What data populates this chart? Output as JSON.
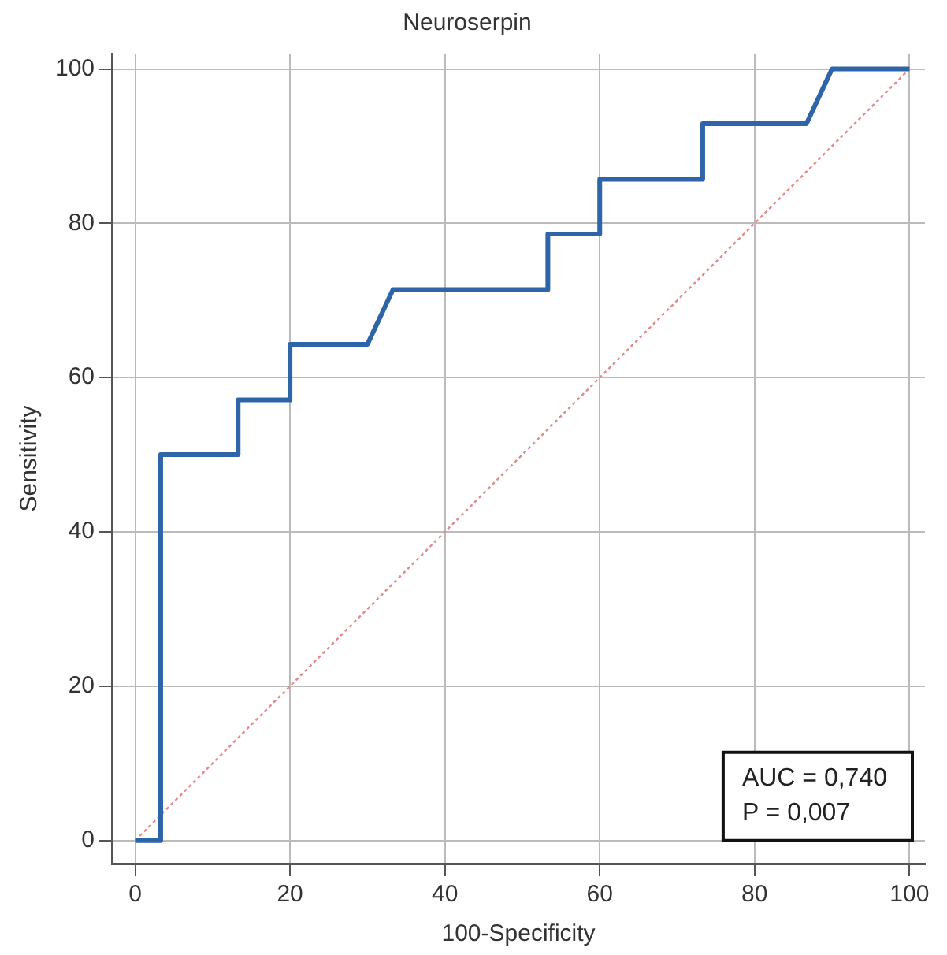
{
  "chart_data": {
    "type": "line",
    "title": "Neuroserpin",
    "xlabel": "100-Specificity",
    "ylabel": "Sensitivity",
    "xlim": [
      -3,
      102
    ],
    "ylim": [
      -3,
      102
    ],
    "xticks": [
      0,
      20,
      40,
      60,
      80,
      100
    ],
    "yticks": [
      0,
      20,
      40,
      60,
      80,
      100
    ],
    "grid": true,
    "legend": false,
    "marker": "none",
    "annotations": [
      "AUC = 0,740",
      "P = 0,007"
    ],
    "series": [
      {
        "color": "#2e64a8",
        "line_style": "solid",
        "x": [
          0,
          3.3,
          3.3,
          13.3,
          13.3,
          20,
          20,
          30,
          33.3,
          53.3,
          53.3,
          60,
          60,
          73.3,
          73.3,
          86.7,
          90,
          100
        ],
        "values": [
          0,
          0,
          50,
          50,
          57.1,
          57.1,
          64.3,
          64.3,
          71.4,
          71.4,
          78.6,
          78.6,
          85.7,
          85.7,
          92.9,
          92.9,
          100,
          100
        ]
      },
      {
        "color": "#e08a8a",
        "line_style": "dotted",
        "x": [
          0,
          100
        ],
        "values": [
          0,
          100
        ]
      }
    ]
  }
}
